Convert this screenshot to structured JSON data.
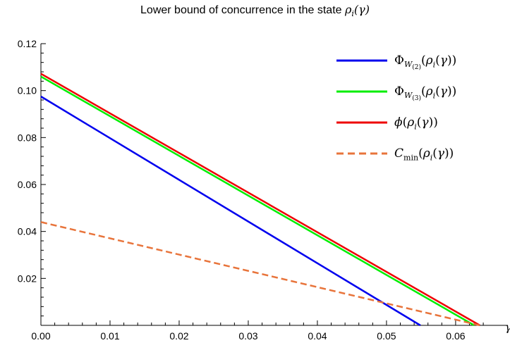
{
  "title": "Lower bound of concurrence in the state ρ_i(γ)",
  "chart_data": {
    "type": "line",
    "title": "Lower bound of concurrence in the state ρ_i(γ)",
    "xlabel": "γ",
    "ylabel": "",
    "xlim": [
      0,
      0.0645
    ],
    "ylim": [
      0,
      0.12
    ],
    "x_ticks": [
      "0.00",
      "0.01",
      "0.02",
      "0.03",
      "0.04",
      "0.05",
      "0.06"
    ],
    "y_ticks": [
      "0.02",
      "0.04",
      "0.06",
      "0.08",
      "0.10",
      "0.12"
    ],
    "grid": false,
    "legend_position": "top-right",
    "series": [
      {
        "name": "Φ_W(2)(ρ_i(γ))",
        "color": "#0000ee",
        "style": "solid",
        "points": [
          [
            0,
            0.0975
          ],
          [
            0.0549,
            0
          ]
        ]
      },
      {
        "name": "Φ_W(3)(ρ_i(γ))",
        "color": "#00ee00",
        "style": "solid",
        "points": [
          [
            0,
            0.106
          ],
          [
            0.0627,
            0
          ]
        ]
      },
      {
        "name": "ϕ(ρ_i(γ))",
        "color": "#ee0000",
        "style": "solid",
        "points": [
          [
            0,
            0.1072
          ],
          [
            0.0635,
            0
          ]
        ]
      },
      {
        "name": "C_min(ρ_i(γ))",
        "color": "#e8743b",
        "style": "dashed",
        "points": [
          [
            0,
            0.044
          ],
          [
            0.0635,
            0
          ]
        ]
      }
    ]
  }
}
